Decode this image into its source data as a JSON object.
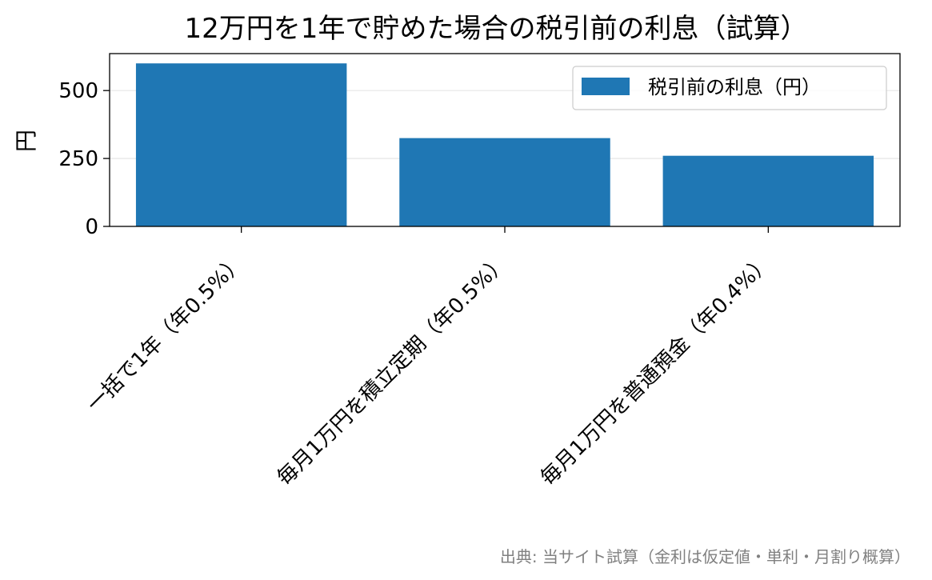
{
  "chart_data": {
    "type": "bar",
    "title": "12万円を1年で貯めた場合の税引前の利息（試算）",
    "xlabel": "",
    "ylabel": "円",
    "categories": [
      "一括で1年（年0.5%）",
      "毎月1万円を積立定期（年0.5%）",
      "毎月1万円を普通預金（年0.4%）"
    ],
    "series": [
      {
        "name": "税引前の利息（円）",
        "values": [
          600,
          325,
          260
        ]
      }
    ],
    "ylim": [
      0,
      636
    ],
    "yticks": [
      0,
      250,
      500
    ],
    "grid": "y",
    "legend": "top-right",
    "colors": {
      "bar": "#1f77b4",
      "grid": "#e6e6e6",
      "source": "#808080"
    },
    "source": "出典: 当サイト試算（金利は仮定値・単利・月割り概算）"
  }
}
